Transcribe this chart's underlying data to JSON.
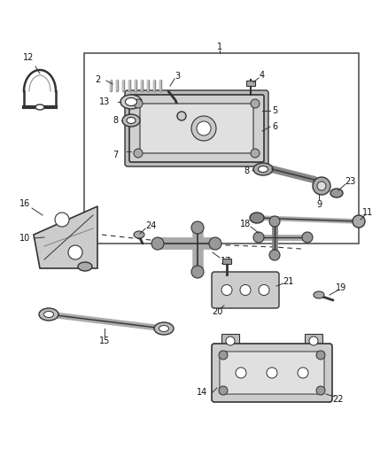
{
  "bg_color": "#ffffff",
  "line_color": "#333333",
  "label_color": "#111111",
  "figsize": [
    4.38,
    5.33
  ],
  "dpi": 100
}
